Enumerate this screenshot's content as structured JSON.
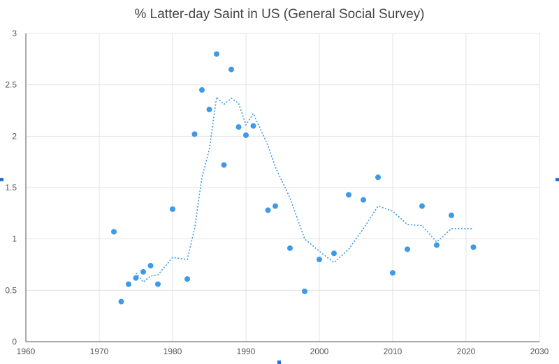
{
  "chart_data": {
    "type": "scatter",
    "title": "% Latter-day Saint in US (General Social Survey)",
    "xlabel": "",
    "ylabel": "",
    "xlim": [
      1960,
      2030
    ],
    "ylim": [
      0,
      3
    ],
    "xticks": [
      1960,
      1970,
      1980,
      1990,
      2000,
      2010,
      2020,
      2030
    ],
    "yticks": [
      0,
      0.5,
      1,
      1.5,
      2,
      2.5,
      3
    ],
    "grid": true,
    "legend": "none",
    "color": "#3d9ae6",
    "points": [
      [
        1972,
        1.07
      ],
      [
        1973,
        0.39
      ],
      [
        1974,
        0.56
      ],
      [
        1975,
        0.62
      ],
      [
        1976,
        0.68
      ],
      [
        1977,
        0.74
      ],
      [
        1978,
        0.56
      ],
      [
        1980,
        1.29
      ],
      [
        1982,
        0.61
      ],
      [
        1983,
        2.02
      ],
      [
        1984,
        2.45
      ],
      [
        1985,
        2.26
      ],
      [
        1986,
        2.8
      ],
      [
        1987,
        1.72
      ],
      [
        1988,
        2.65
      ],
      [
        1989,
        2.09
      ],
      [
        1990,
        2.01
      ],
      [
        1991,
        2.1
      ],
      [
        1993,
        1.28
      ],
      [
        1994,
        1.32
      ],
      [
        1996,
        0.91
      ],
      [
        1998,
        0.49
      ],
      [
        2000,
        0.8
      ],
      [
        2002,
        0.86
      ],
      [
        2004,
        1.43
      ],
      [
        2006,
        1.38
      ],
      [
        2008,
        1.6
      ],
      [
        2010,
        0.67
      ],
      [
        2012,
        0.9
      ],
      [
        2014,
        1.32
      ],
      [
        2016,
        0.94
      ],
      [
        2018,
        1.23
      ],
      [
        2021,
        0.92
      ]
    ],
    "trendline": {
      "style": "dotted",
      "points": [
        [
          1975,
          0.67
        ],
        [
          1976,
          0.58
        ],
        [
          1977,
          0.64
        ],
        [
          1978,
          0.65
        ],
        [
          1980,
          0.82
        ],
        [
          1982,
          0.8
        ],
        [
          1983,
          1.1
        ],
        [
          1984,
          1.6
        ],
        [
          1985,
          1.87
        ],
        [
          1986,
          2.38
        ],
        [
          1987,
          2.31
        ],
        [
          1988,
          2.37
        ],
        [
          1989,
          2.32
        ],
        [
          1990,
          2.11
        ],
        [
          1991,
          2.22
        ],
        [
          1993,
          1.91
        ],
        [
          1994,
          1.7
        ],
        [
          1996,
          1.4
        ],
        [
          1998,
          1.0
        ],
        [
          2000,
          0.88
        ],
        [
          2002,
          0.77
        ],
        [
          2004,
          0.9
        ],
        [
          2006,
          1.1
        ],
        [
          2008,
          1.32
        ],
        [
          2010,
          1.27
        ],
        [
          2012,
          1.14
        ],
        [
          2014,
          1.13
        ],
        [
          2016,
          0.97
        ],
        [
          2018,
          1.1
        ],
        [
          2021,
          1.1
        ]
      ]
    }
  }
}
